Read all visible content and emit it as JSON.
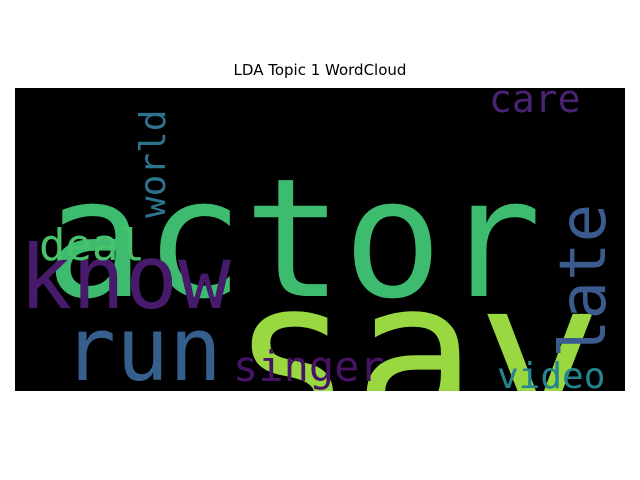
{
  "chart_data": {
    "type": "wordcloud",
    "title": "LDA Topic 1 WordCloud",
    "background": "#000000",
    "words": [
      {
        "text": "actor",
        "color": "#3dbb6e"
      },
      {
        "text": "say",
        "color": "#9ad841"
      },
      {
        "text": "know",
        "color": "#481a6c"
      },
      {
        "text": "run",
        "color": "#355f8d"
      },
      {
        "text": "late",
        "color": "#3b5b8e"
      },
      {
        "text": "deal",
        "color": "#4ac16d"
      },
      {
        "text": "singer",
        "color": "#471365"
      },
      {
        "text": "world",
        "color": "#2c738e"
      },
      {
        "text": "care",
        "color": "#482374"
      },
      {
        "text": "video",
        "color": "#25858e"
      }
    ]
  }
}
